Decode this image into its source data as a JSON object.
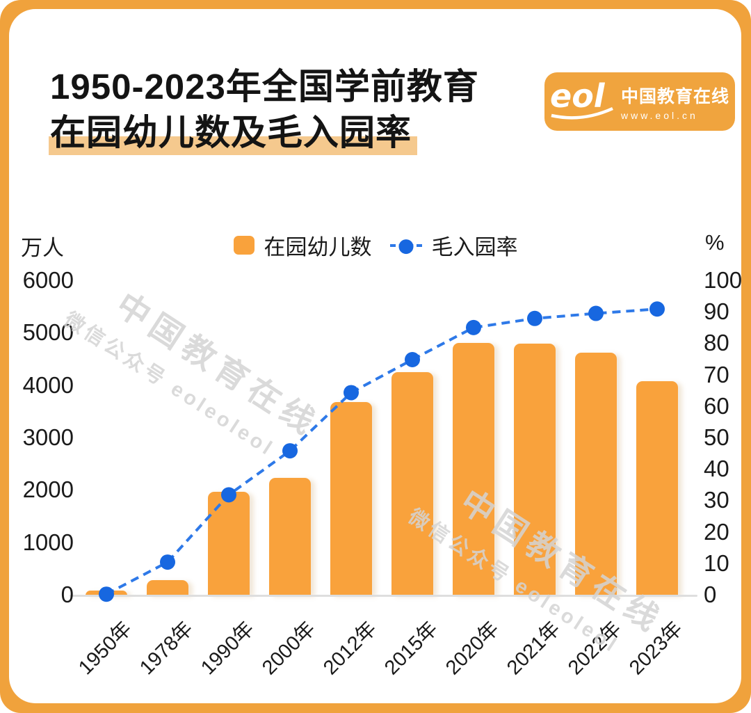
{
  "header": {
    "title_line1": "1950-2023年全国学前教育",
    "title_line2": "在园幼儿数及毛入园率"
  },
  "logo": {
    "brand": "eol",
    "name": "中国教育在线",
    "url": "www.eol.cn"
  },
  "watermark": {
    "line1": "中国教育在线",
    "line2": "微信公众号 eoleoleol"
  },
  "legend": {
    "bar_label": "在园幼儿数",
    "line_label": "毛入园率"
  },
  "chart_data": {
    "type": "bar",
    "title": "1950-2023年全国学前教育在园幼儿数及毛入园率",
    "categories": [
      "1950年",
      "1978年",
      "1990年",
      "2000年",
      "2012年",
      "2015年",
      "2020年",
      "2021年",
      "2022年",
      "2023年"
    ],
    "series": [
      {
        "name": "在园幼儿数",
        "type": "bar",
        "axis": "left",
        "unit": "万人",
        "values": [
          14,
          290,
          1972,
          2244,
          3686,
          4265,
          4818,
          4805,
          4628,
          4093
        ]
      },
      {
        "name": "毛入园率",
        "type": "line",
        "axis": "right",
        "unit": "%",
        "values": [
          0.4,
          10.6,
          32,
          46,
          64.5,
          75,
          85.2,
          88.1,
          89.7,
          91.1
        ]
      }
    ],
    "y_left": {
      "label": "万人",
      "min": 0,
      "max": 6000,
      "step": 1000
    },
    "y_right": {
      "label": "%",
      "min": 0,
      "max": 100,
      "step": 10
    },
    "grid": false,
    "legend_position": "top-center",
    "colors": {
      "bar": "#F9A23C",
      "line": "#2E79E8",
      "dot": "#1767E0",
      "highlight": "#F5C98E",
      "frame": "#F0A23C"
    }
  }
}
